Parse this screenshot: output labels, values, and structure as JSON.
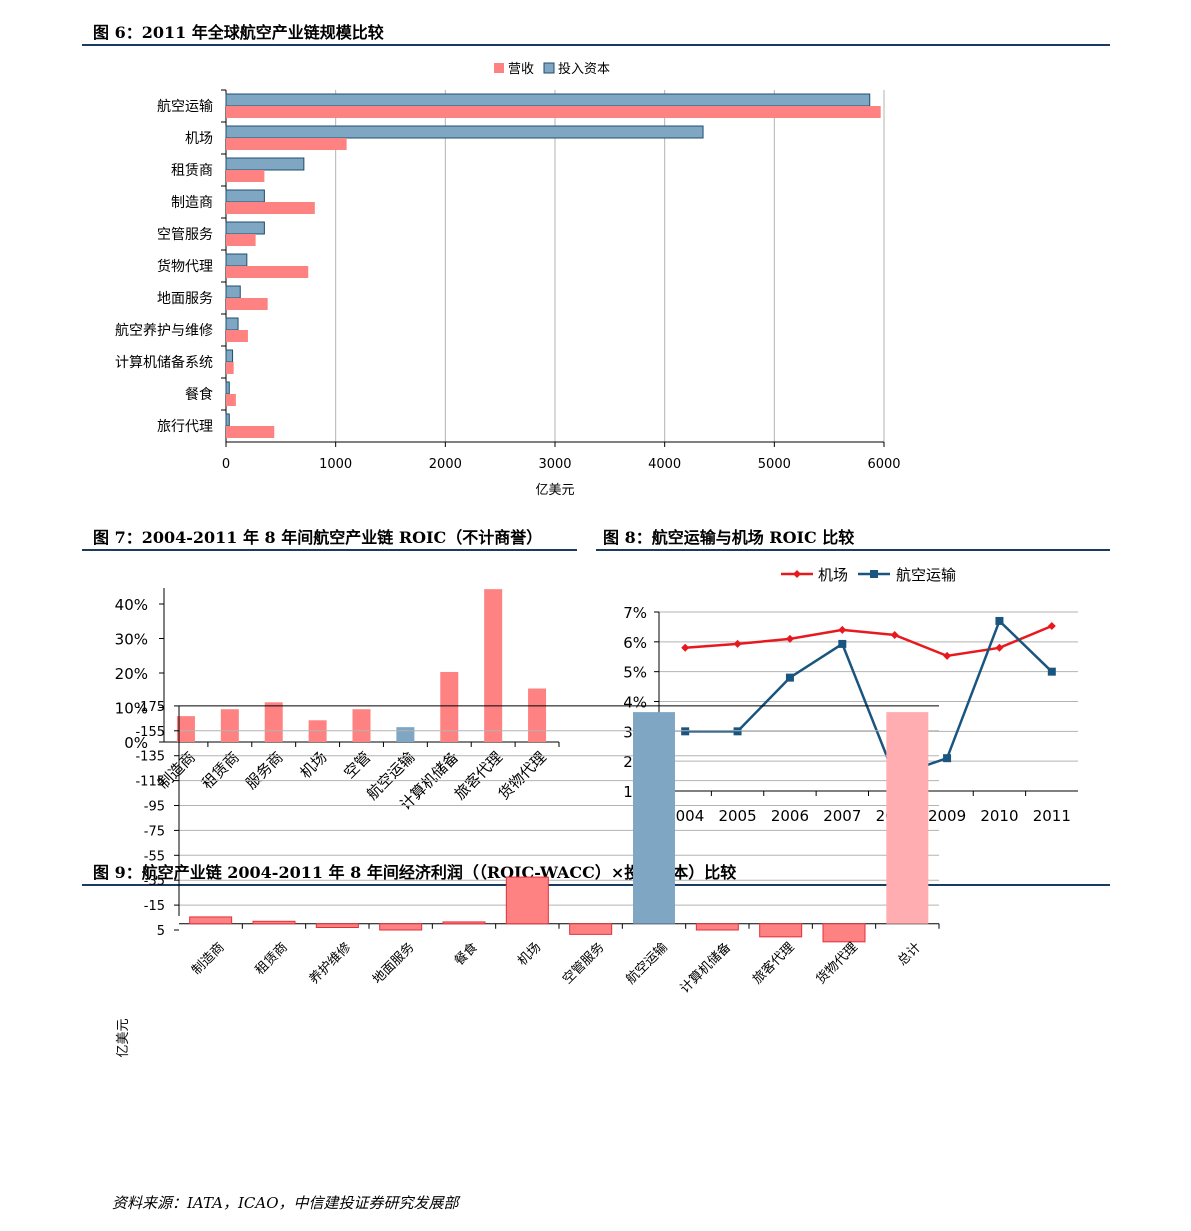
{
  "colors": {
    "revenue": "#ff8282",
    "capital": "#7fa6c2",
    "capital_edge": "#1f4e6e",
    "airport_line": "#e8191e",
    "airline_line": "#1a557f",
    "grid": "#b3b3b3",
    "total_bar": "#ffadb0",
    "rule": "#1a3b5d"
  },
  "figures": {
    "fig6_title": "图 6：2011 年全球航空产业链规模比较",
    "fig7_title": "图 7：2004-2011 年 8 年间航空产业链 ROIC（不计商誉）",
    "fig8_title": "图 8：航空运输与机场 ROIC 比较",
    "fig9_title": "图 9：航空产业链 2004-2011 年 8 年间经济利润（（ROIC-WACC）×投入资本）比较"
  },
  "source_note": "资料来源：IATA，ICAO，中信建投证券研究发展部",
  "chart_data": [
    {
      "id": "fig6",
      "type": "bar",
      "orientation": "horizontal",
      "categories": [
        "航空运输",
        "机场",
        "租赁商",
        "制造商",
        "空管服务",
        "货物代理",
        "地面服务",
        "航空养护与维修",
        "计算机储备系统",
        "餐食",
        "旅行代理"
      ],
      "series": [
        {
          "name": "营收",
          "values": [
            5970,
            1100,
            350,
            810,
            270,
            750,
            380,
            200,
            70,
            90,
            440
          ]
        },
        {
          "name": "投入资本",
          "values": [
            5870,
            4350,
            710,
            350,
            350,
            190,
            130,
            110,
            60,
            30,
            30
          ]
        }
      ],
      "xlabel": "亿美元",
      "xlim": [
        0,
        6000
      ],
      "xticks": [
        "0",
        "1000",
        "2000",
        "3000",
        "4000",
        "5000",
        "6000"
      ],
      "grid": "vertical",
      "legend": "top-center"
    },
    {
      "id": "fig7",
      "type": "bar",
      "categories": [
        "制造商",
        "租赁商",
        "服务商",
        "机场",
        "空管",
        "航空运输",
        "计算机储备",
        "旅客代理",
        "货物代理"
      ],
      "values": [
        7.5,
        9.5,
        11.5,
        6.3,
        9.5,
        4.3,
        20.3,
        44.3,
        15.5
      ],
      "highlight_index": 5,
      "ylim": [
        0,
        40
      ],
      "yticks": [
        "0%",
        "10%",
        "20%",
        "30%",
        "40%"
      ],
      "legend": "none"
    },
    {
      "id": "fig8",
      "type": "line",
      "x": [
        "2004",
        "2005",
        "2006",
        "2007",
        "2008",
        "2009",
        "2010",
        "2011"
      ],
      "series": [
        {
          "name": "机场",
          "values": [
            5.8,
            5.93,
            6.1,
            6.4,
            6.23,
            5.53,
            5.8,
            6.53
          ]
        },
        {
          "name": "航空运输",
          "values": [
            3.0,
            3.0,
            4.8,
            5.93,
            1.5,
            2.1,
            6.7,
            5.0
          ]
        }
      ],
      "ylim": [
        1,
        7
      ],
      "yticks": [
        "1%",
        "2%",
        "3%",
        "4%",
        "5%",
        "6%",
        "7%"
      ],
      "grid": "horizontal",
      "legend": "top-center"
    },
    {
      "id": "fig9",
      "type": "bar",
      "categories": [
        "制造商",
        "租赁商",
        "养护维修",
        "地面服务",
        "餐食",
        "机场",
        "空管服务",
        "航空运输",
        "计算机储备",
        "旅客代理",
        "货物代理",
        "总计"
      ],
      "values": [
        -5.5,
        -2,
        3,
        5,
        -1.5,
        -37.5,
        8.5,
        -170,
        5,
        10.5,
        14.5,
        -170
      ],
      "ylabel": "亿美元",
      "ylim": [
        -175,
        10
      ],
      "yticks": [
        "5",
        "-15",
        "-35",
        "-55",
        "-75",
        "-95",
        "-115",
        "-135",
        "-155",
        "-175"
      ],
      "grid": "horizontal",
      "legend": "none"
    }
  ]
}
